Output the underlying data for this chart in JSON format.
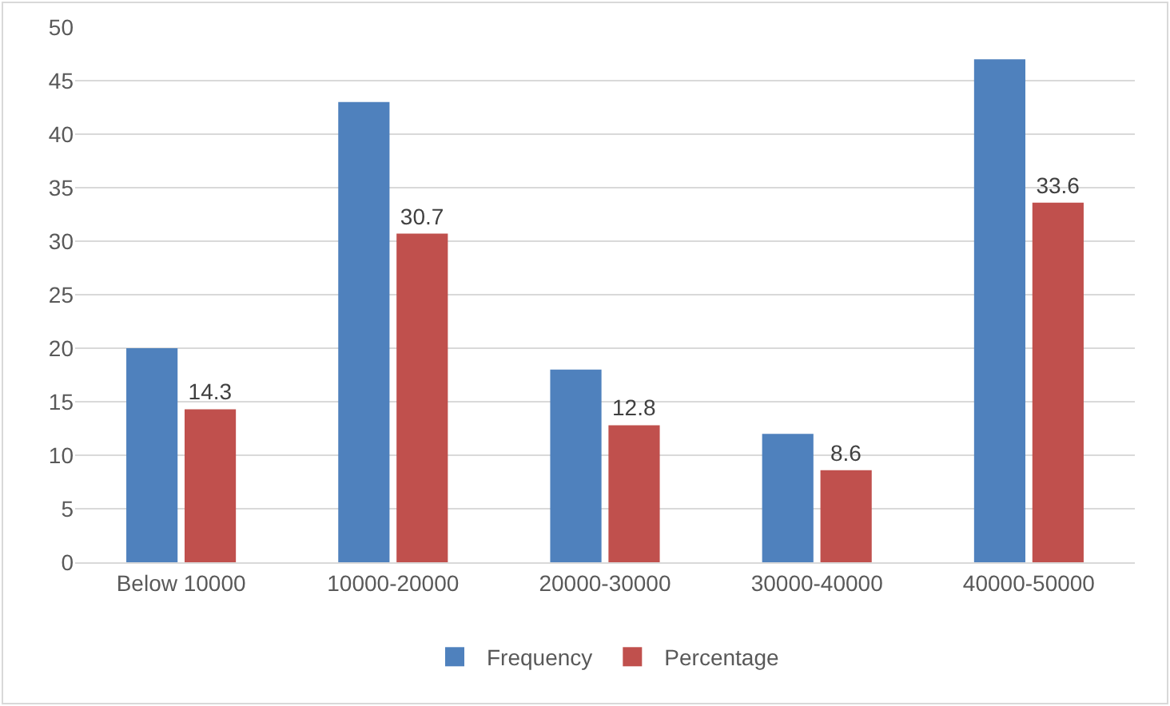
{
  "chart_data": {
    "type": "bar",
    "categories": [
      "Below 10000",
      "10000-20000",
      "20000-30000",
      "30000-40000",
      "40000-50000"
    ],
    "series": [
      {
        "name": "Frequency",
        "color": "#4f81bd",
        "values": [
          20,
          43,
          18,
          12,
          47
        ]
      },
      {
        "name": "Percentage",
        "color": "#c0504d",
        "values": [
          14.3,
          30.7,
          12.8,
          8.6,
          33.6
        ],
        "value_labels": [
          "14.3",
          "30.7",
          "12.8",
          "8.6",
          "33.6"
        ]
      }
    ],
    "ylim": [
      0,
      50
    ],
    "yticks": [
      0,
      5,
      10,
      15,
      20,
      25,
      30,
      35,
      40,
      45,
      50
    ],
    "grid": "y",
    "legend": "bottom"
  }
}
